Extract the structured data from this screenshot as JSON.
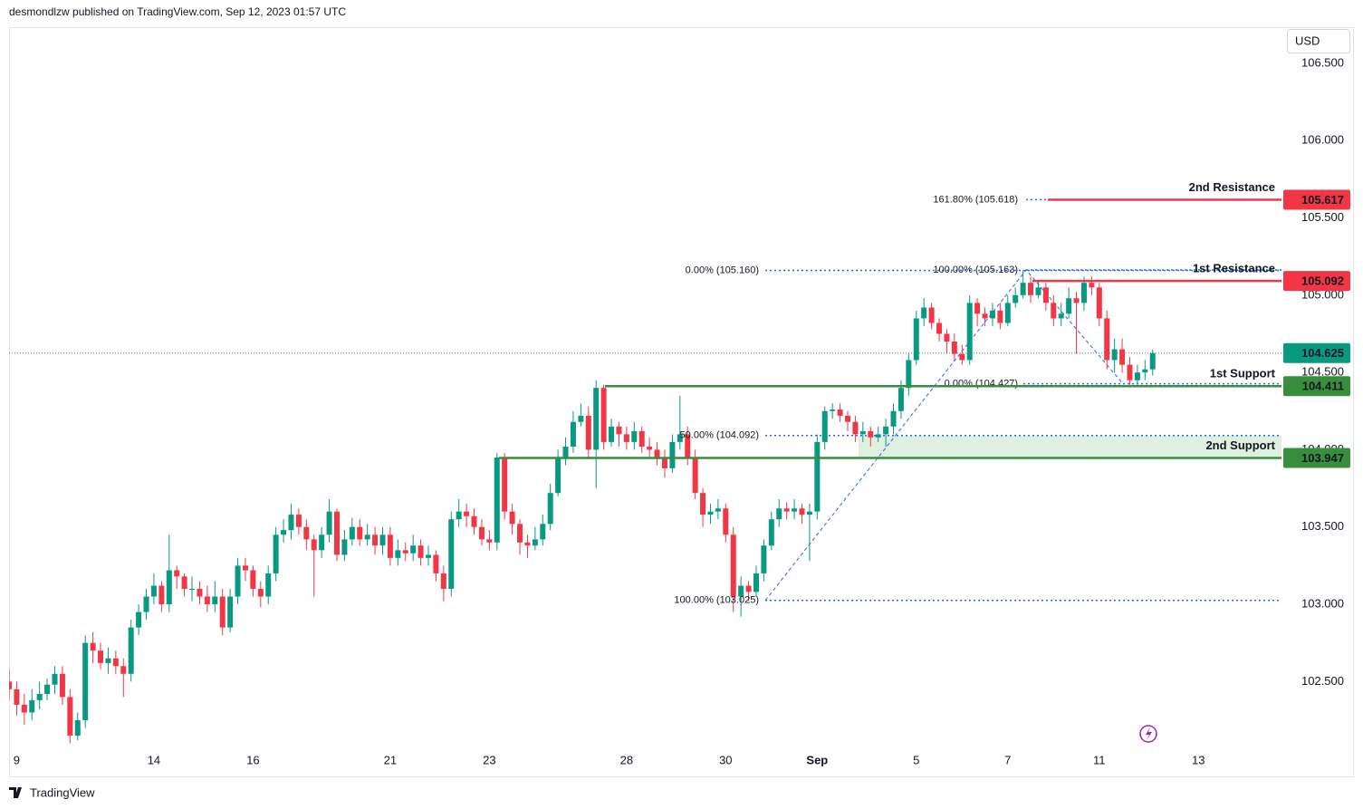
{
  "header": {
    "publisher": "desmondlzw published on TradingView.com, Sep 12, 2023 01:57 UTC"
  },
  "chart_data": {
    "type": "candlestick",
    "currency": "USD",
    "up_color": "#089981",
    "down_color": "#f23645",
    "open": [
      102.5,
      102.45,
      102.35,
      102.3,
      102.38,
      102.42,
      102.48,
      102.55,
      102.4,
      102.15,
      102.25,
      102.75,
      102.7,
      102.62,
      102.65,
      102.6,
      102.55,
      102.85,
      102.95,
      103.05,
      103.12,
      103.0,
      103.22,
      103.18,
      103.1,
      103.1,
      103.05,
      103.0,
      103.05,
      102.85,
      103.05,
      103.25,
      103.22,
      103.1,
      103.05,
      103.2,
      103.45,
      103.48,
      103.58,
      103.5,
      103.42,
      103.35,
      103.45,
      103.6,
      103.32,
      103.42,
      103.5,
      103.42,
      103.45,
      103.38,
      103.45,
      103.3,
      103.35,
      103.33,
      103.38,
      103.3,
      103.32,
      103.2,
      103.1,
      103.55,
      103.6,
      103.57,
      103.5,
      103.42,
      103.4,
      103.95,
      103.6,
      103.52,
      103.4,
      103.38,
      103.42,
      103.52,
      103.72,
      103.95,
      104.02,
      104.18,
      104.22,
      104.0,
      104.4,
      104.05,
      104.15,
      104.1,
      104.05,
      104.12,
      104.02,
      104.0,
      103.95,
      103.88,
      104.05,
      104.1,
      103.95,
      103.72,
      103.58,
      103.6,
      103.62,
      103.45,
      103.05,
      103.12,
      103.08,
      103.2,
      103.38,
      103.55,
      103.62,
      103.6,
      103.62,
      103.58,
      103.6,
      104.05,
      104.25,
      104.26,
      104.22,
      104.18,
      104.1,
      104.12,
      104.08,
      104.1,
      104.15,
      104.25,
      104.4,
      104.58,
      104.85,
      104.92,
      104.82,
      104.75,
      104.7,
      104.62,
      104.58,
      104.95,
      104.88,
      104.85,
      104.9,
      104.82,
      104.95,
      105.0,
      105.08,
      105.0,
      105.05,
      104.95,
      104.85,
      104.88,
      104.98,
      104.95,
      105.08,
      105.05,
      104.85,
      104.58,
      104.65,
      104.55,
      104.45,
      104.5,
      104.52
    ],
    "high": [
      102.58,
      102.5,
      102.42,
      102.45,
      102.5,
      102.52,
      102.6,
      102.6,
      102.45,
      102.3,
      102.8,
      102.82,
      102.75,
      102.72,
      102.7,
      102.65,
      102.9,
      103.0,
      103.1,
      103.2,
      103.15,
      103.45,
      103.25,
      103.2,
      103.18,
      103.15,
      103.12,
      103.15,
      103.1,
      103.1,
      103.3,
      103.3,
      103.25,
      103.15,
      103.25,
      103.5,
      103.55,
      103.65,
      103.62,
      103.55,
      103.45,
      103.5,
      103.68,
      103.62,
      103.48,
      103.56,
      103.55,
      103.52,
      103.5,
      103.5,
      103.5,
      103.42,
      103.4,
      103.45,
      103.42,
      103.38,
      103.35,
      103.25,
      103.6,
      103.68,
      103.65,
      103.62,
      103.55,
      103.48,
      103.98,
      103.98,
      103.65,
      103.55,
      103.45,
      103.5,
      103.58,
      103.78,
      104.0,
      104.08,
      104.25,
      104.3,
      104.28,
      104.45,
      104.42,
      104.2,
      104.18,
      104.15,
      104.18,
      104.15,
      104.08,
      104.05,
      104.0,
      104.1,
      104.35,
      104.15,
      104.0,
      103.75,
      103.65,
      103.68,
      103.65,
      103.5,
      103.18,
      103.15,
      103.25,
      103.42,
      103.6,
      103.68,
      103.66,
      103.68,
      103.65,
      103.65,
      104.1,
      104.28,
      104.3,
      104.3,
      104.25,
      104.22,
      104.18,
      104.15,
      104.15,
      104.2,
      104.3,
      104.45,
      104.62,
      104.9,
      104.98,
      104.95,
      104.85,
      104.78,
      104.75,
      104.68,
      105.0,
      104.98,
      104.92,
      104.95,
      104.95,
      105.0,
      105.05,
      105.16,
      105.12,
      105.1,
      105.08,
      105.0,
      104.95,
      105.05,
      105.02,
      105.12,
      105.12,
      105.08,
      104.9,
      104.72,
      104.72,
      104.6,
      104.55,
      104.58,
      104.65
    ],
    "low": [
      102.38,
      102.28,
      102.22,
      102.25,
      102.32,
      102.38,
      102.42,
      102.35,
      102.1,
      102.12,
      102.2,
      102.62,
      102.58,
      102.55,
      102.55,
      102.4,
      102.5,
      102.8,
      102.9,
      103.0,
      102.95,
      102.95,
      103.1,
      103.05,
      103.02,
      103.0,
      102.95,
      102.95,
      102.8,
      102.82,
      103.0,
      103.15,
      103.05,
      102.98,
      103.0,
      103.15,
      103.4,
      103.42,
      103.45,
      103.35,
      103.05,
      103.3,
      103.4,
      103.28,
      103.28,
      103.38,
      103.38,
      103.38,
      103.32,
      103.32,
      103.25,
      103.25,
      103.28,
      103.28,
      103.25,
      103.25,
      103.15,
      103.02,
      103.05,
      103.5,
      103.5,
      103.45,
      103.38,
      103.35,
      103.35,
      103.55,
      103.45,
      103.32,
      103.3,
      103.35,
      103.38,
      103.48,
      103.7,
      103.9,
      103.98,
      104.15,
      103.95,
      103.75,
      104.0,
      104.02,
      104.02,
      104.0,
      104.0,
      103.98,
      103.95,
      103.9,
      103.82,
      103.85,
      104.0,
      103.9,
      103.68,
      103.5,
      103.52,
      103.55,
      103.4,
      102.95,
      102.92,
      103.02,
      103.05,
      103.15,
      103.35,
      103.5,
      103.55,
      103.55,
      103.52,
      103.28,
      103.55,
      104.0,
      104.2,
      104.18,
      104.12,
      104.05,
      104.05,
      104.02,
      104.05,
      104.02,
      104.1,
      104.2,
      104.35,
      104.55,
      104.8,
      104.78,
      104.7,
      104.62,
      104.58,
      104.55,
      104.55,
      104.8,
      104.8,
      104.8,
      104.78,
      104.8,
      104.92,
      104.98,
      104.95,
      104.98,
      104.9,
      104.8,
      104.8,
      104.85,
      104.62,
      104.9,
      105.0,
      104.8,
      104.52,
      104.5,
      104.5,
      104.42,
      104.42,
      104.45,
      104.48
    ],
    "close": [
      102.45,
      102.35,
      102.3,
      102.38,
      102.42,
      102.48,
      102.55,
      102.4,
      102.15,
      102.25,
      102.75,
      102.7,
      102.62,
      102.65,
      102.6,
      102.55,
      102.85,
      102.95,
      103.05,
      103.12,
      103.0,
      103.22,
      103.18,
      103.1,
      103.1,
      103.05,
      103.0,
      103.05,
      102.85,
      103.05,
      103.25,
      103.22,
      103.1,
      103.05,
      103.2,
      103.45,
      103.48,
      103.58,
      103.5,
      103.42,
      103.35,
      103.45,
      103.6,
      103.32,
      103.42,
      103.5,
      103.42,
      103.45,
      103.38,
      103.45,
      103.3,
      103.35,
      103.33,
      103.38,
      103.3,
      103.32,
      103.2,
      103.1,
      103.55,
      103.6,
      103.57,
      103.5,
      103.42,
      103.4,
      103.95,
      103.6,
      103.52,
      103.4,
      103.38,
      103.42,
      103.52,
      103.72,
      103.95,
      104.02,
      104.18,
      104.22,
      104.0,
      104.4,
      104.05,
      104.15,
      104.1,
      104.05,
      104.12,
      104.02,
      104.0,
      103.95,
      103.88,
      104.05,
      104.1,
      103.95,
      103.72,
      103.58,
      103.6,
      103.62,
      103.45,
      103.05,
      103.12,
      103.08,
      103.2,
      103.38,
      103.55,
      103.62,
      103.6,
      103.62,
      103.58,
      103.6,
      104.05,
      104.25,
      104.26,
      104.22,
      104.18,
      104.1,
      104.12,
      104.08,
      104.1,
      104.15,
      104.25,
      104.4,
      104.58,
      104.85,
      104.92,
      104.82,
      104.75,
      104.7,
      104.62,
      104.58,
      104.95,
      104.88,
      104.85,
      104.9,
      104.82,
      104.95,
      105.0,
      105.08,
      105.0,
      105.05,
      104.95,
      104.85,
      104.88,
      104.98,
      104.95,
      105.08,
      105.05,
      104.85,
      104.58,
      104.65,
      104.55,
      104.45,
      104.5,
      104.52,
      104.625
    ],
    "xlim": [
      0,
      166.9
    ],
    "xticks": [
      {
        "value": 1,
        "label": "9"
      },
      {
        "value": 19,
        "label": "14"
      },
      {
        "value": 32,
        "label": "16"
      },
      {
        "value": 50,
        "label": "21"
      },
      {
        "value": 63,
        "label": "23"
      },
      {
        "value": 81,
        "label": "28"
      },
      {
        "value": 94,
        "label": "30"
      },
      {
        "value": 106,
        "label": "Sep"
      },
      {
        "value": 119,
        "label": "5"
      },
      {
        "value": 131,
        "label": "7"
      },
      {
        "value": 143,
        "label": "11"
      },
      {
        "value": 156,
        "label": "13"
      }
    ],
    "ylim": [
      102.074,
      106.734
    ],
    "yticks": [
      {
        "value": 102.5,
        "label": "102.500"
      },
      {
        "value": 103,
        "label": "103.000"
      },
      {
        "value": 103.5,
        "label": "103.500"
      },
      {
        "value": 104,
        "label": "104.000"
      },
      {
        "value": 104.5,
        "label": "104.500"
      },
      {
        "value": 105,
        "label": "105.000"
      },
      {
        "value": 105.5,
        "label": "105.500"
      },
      {
        "value": 106,
        "label": "106.000"
      },
      {
        "value": 106.5,
        "label": "106.500"
      }
    ],
    "levels": [
      {
        "name": "2nd Resistance",
        "value": 105.617,
        "color": "#f23645"
      },
      {
        "name": "1st Resistance",
        "value": 105.092,
        "color": "#f23645"
      },
      {
        "name": "1st Support",
        "value": 104.411,
        "color": "#388e3c"
      },
      {
        "name": "2nd Support",
        "value": 103.947,
        "color": "#388e3c"
      }
    ],
    "fib_levels": [
      {
        "label": "161.80% (105.618)",
        "value": 105.618
      },
      {
        "label": "0.00% (105.160)",
        "value": 105.16
      },
      {
        "label": "100.00% (105.163)",
        "value": 105.163
      },
      {
        "label": "0.00% (104.427)",
        "value": 104.427
      },
      {
        "label": "50.00% (104.092)",
        "value": 104.092
      },
      {
        "label": "100.00% (103.025)",
        "value": 103.025
      }
    ],
    "fib_color": "#2962ff"
  },
  "footer": {
    "brand": "TradingView"
  }
}
